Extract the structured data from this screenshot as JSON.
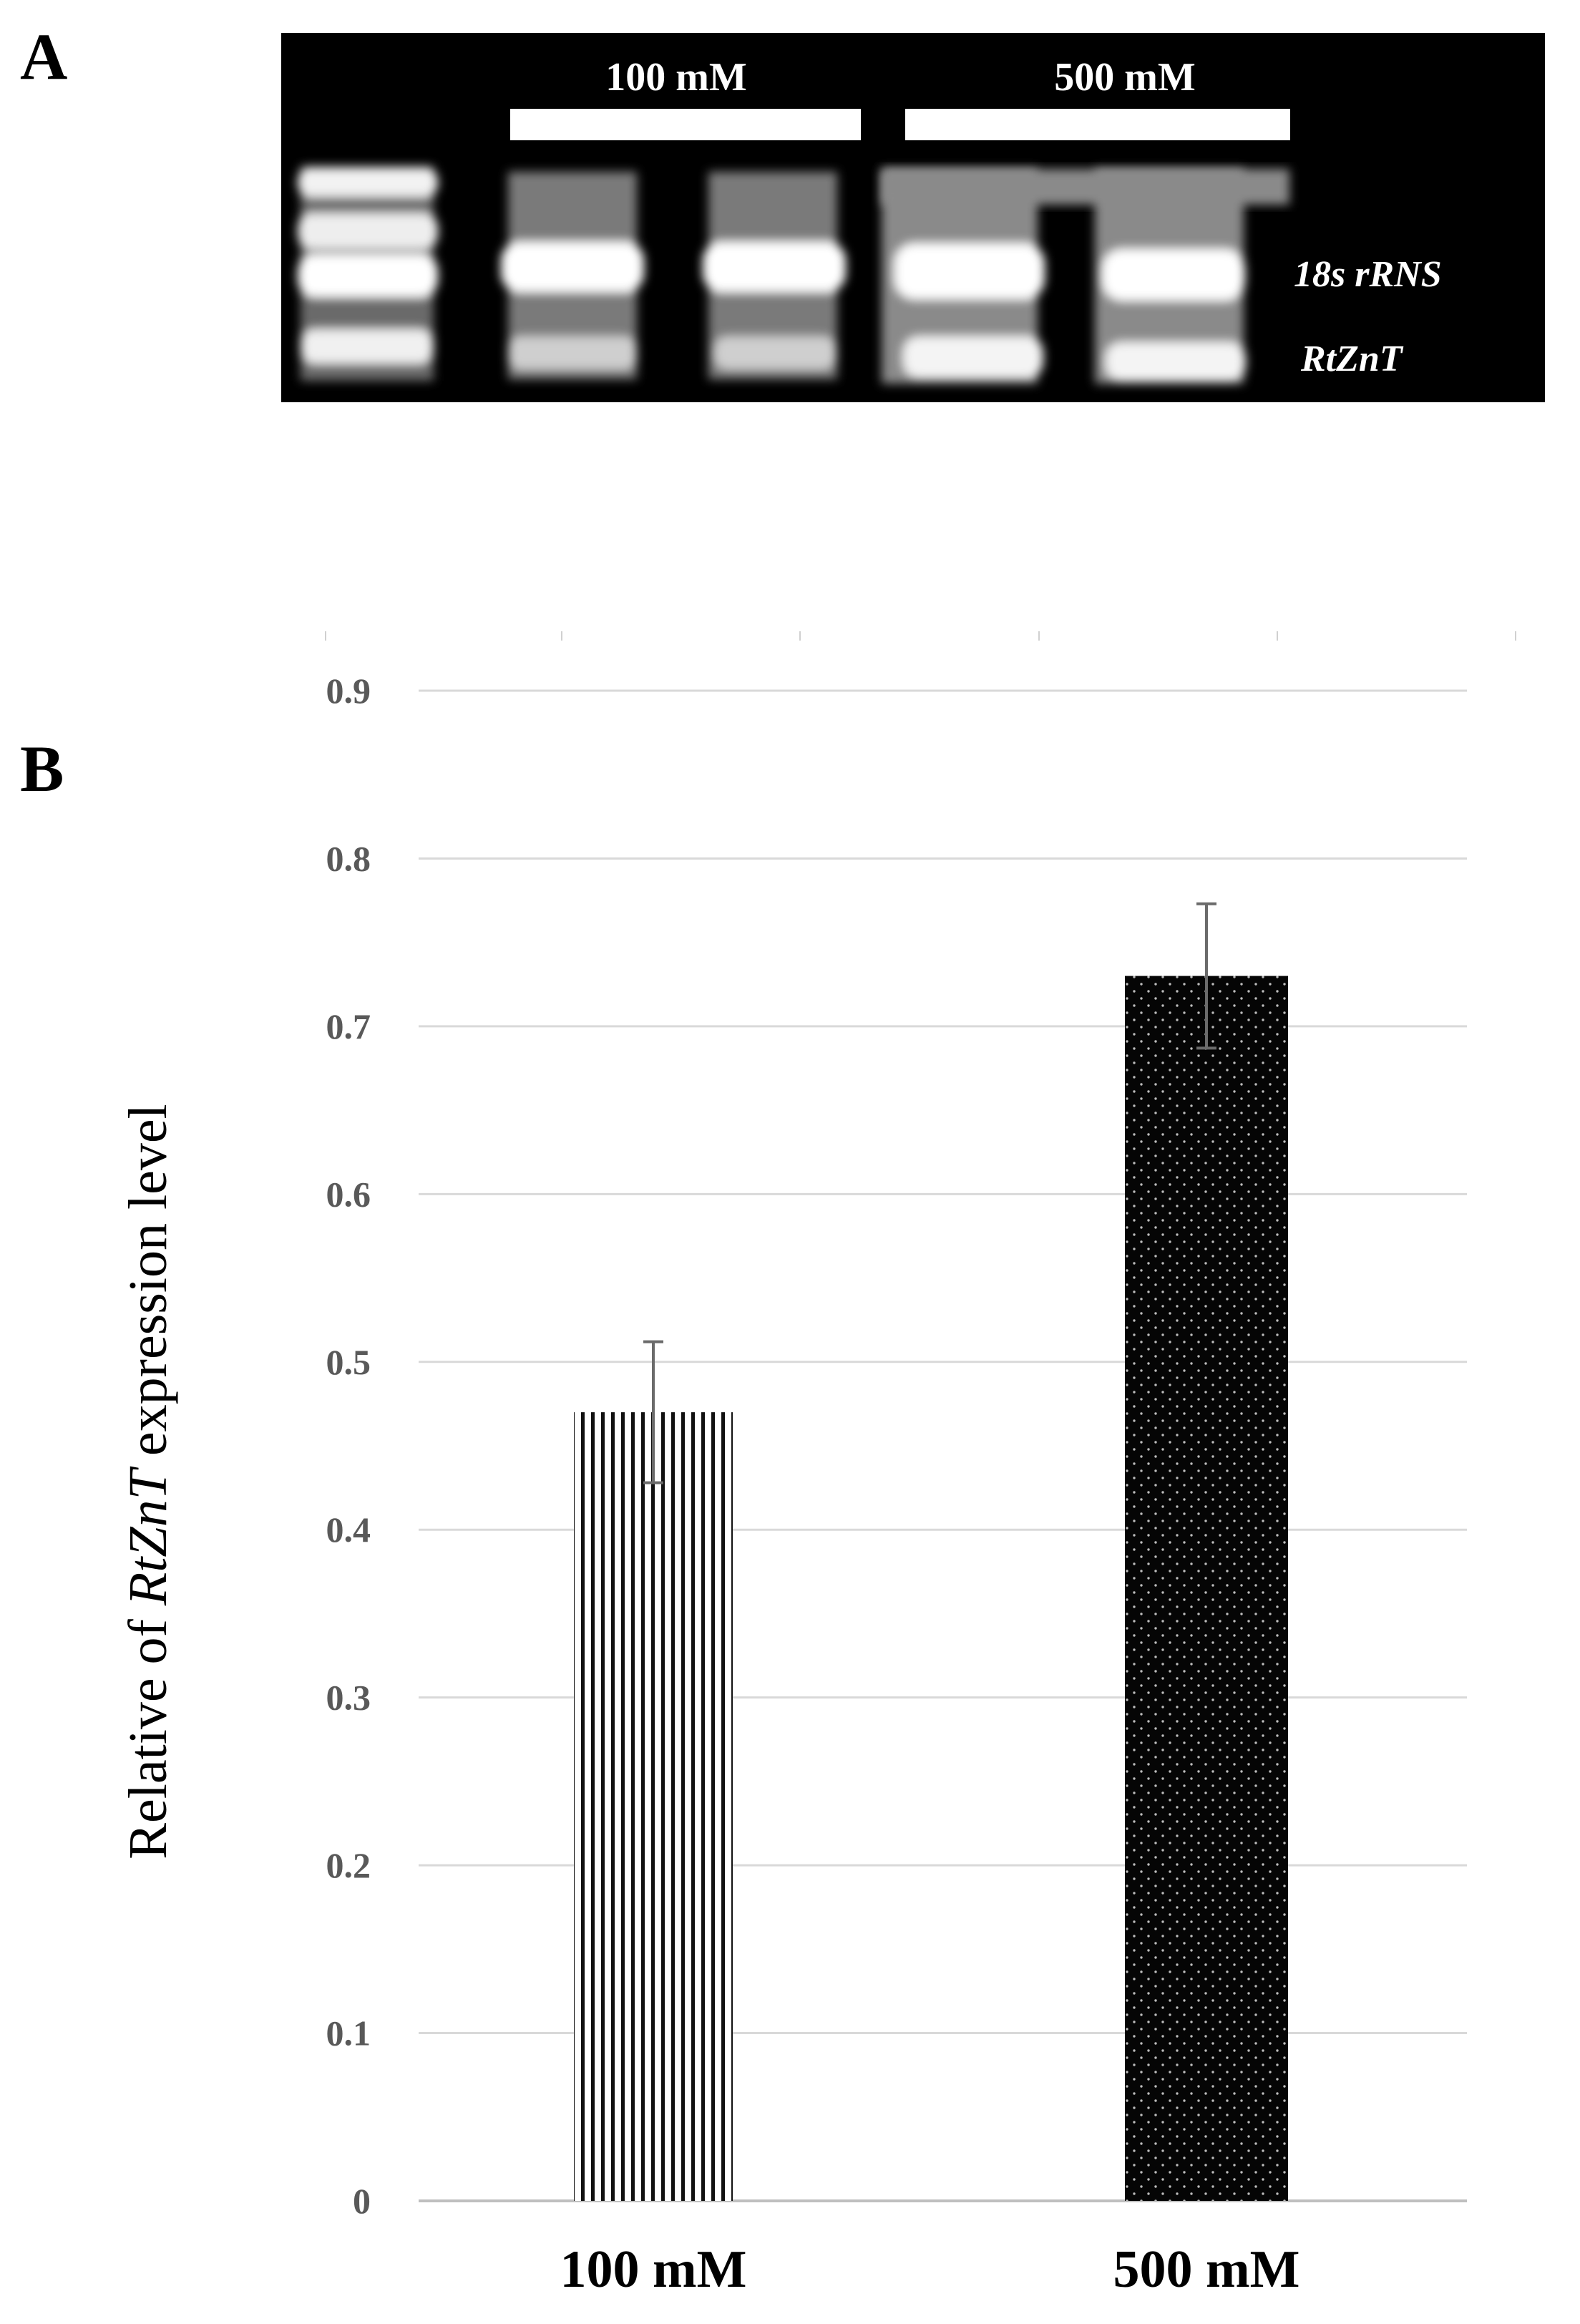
{
  "panel_a": {
    "letter": "A",
    "group_labels": [
      "100 mM",
      "500 mM"
    ],
    "band_labels": [
      "18s rRNS",
      "RtZnT"
    ]
  },
  "panel_b": {
    "letter": "B"
  },
  "chart_data": {
    "type": "bar",
    "categories": [
      "100 mM",
      "500 mM"
    ],
    "values": [
      0.47,
      0.73
    ],
    "errors": [
      0.042,
      0.043
    ],
    "ylabel_prefix": "Relative of ",
    "ylabel_italic": "RtZnT",
    "ylabel_suffix": " expression level",
    "ylim": [
      0,
      0.9
    ],
    "yticks": [
      "0",
      "0.1",
      "0.2",
      "0.3",
      "0.4",
      "0.5",
      "0.6",
      "0.7",
      "0.8",
      "0.9"
    ],
    "grid": true,
    "bar_fills": [
      "vertical-stripes",
      "dotted-black"
    ]
  }
}
